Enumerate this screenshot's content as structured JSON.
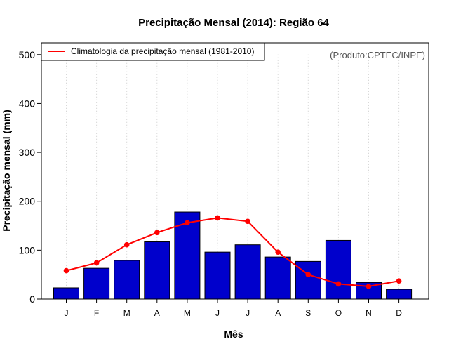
{
  "chart_data": {
    "type": "bar",
    "title": "Precipitação Mensal (2014): Região 64",
    "xlabel": "Mês",
    "ylabel": "Precipitação mensal (mm)",
    "ylim": [
      0,
      500
    ],
    "yticks": [
      0,
      100,
      200,
      300,
      400,
      500
    ],
    "categories": [
      "J",
      "F",
      "M",
      "A",
      "M",
      "J",
      "J",
      "A",
      "S",
      "O",
      "N",
      "D"
    ],
    "series": [
      {
        "name": "Precipitação mensal 2014",
        "type": "bar",
        "color": "#0000cc",
        "values": [
          23,
          63,
          79,
          117,
          178,
          96,
          111,
          86,
          77,
          120,
          34,
          20
        ]
      },
      {
        "name": "Climatologia da precipitação mensal (1981-2010)",
        "type": "line",
        "color": "#ff0000",
        "values": [
          58,
          74,
          111,
          136,
          156,
          166,
          159,
          96,
          50,
          31,
          26,
          37
        ]
      }
    ],
    "legend": {
      "label": "Climatologia da precipitação mensal (1981-2010)",
      "position": "top-left"
    },
    "grid": "vertical-dotted",
    "credit": "(Produto:CPTEC/INPE)"
  }
}
